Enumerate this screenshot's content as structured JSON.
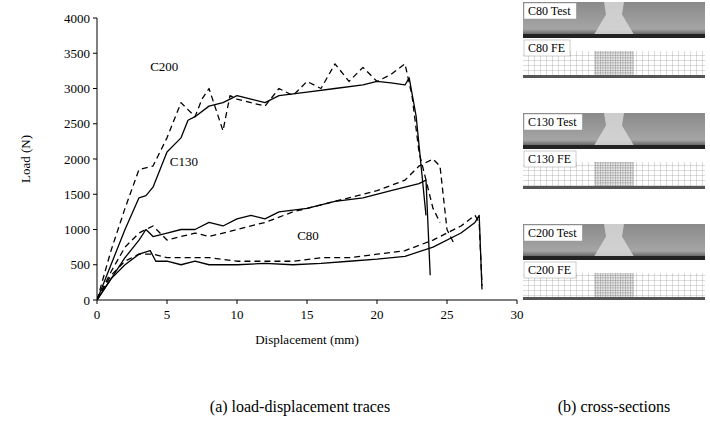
{
  "chart_data": {
    "type": "line",
    "x_label": "Displacement (mm)",
    "y_label": "Load (N)",
    "xlim": [
      0,
      30
    ],
    "xticks": [
      0,
      5,
      10,
      15,
      20,
      25,
      30
    ],
    "ylim": [
      0,
      4000
    ],
    "yticks": [
      0,
      500,
      1000,
      1500,
      2000,
      2500,
      3000,
      3500,
      4000
    ],
    "grid": false,
    "series": [
      {
        "color": "#000000",
        "line_style": "solid",
        "x": [
          0,
          1,
          2,
          3,
          3.5,
          4,
          5,
          6,
          6.5,
          7,
          8,
          9,
          10,
          11,
          12,
          13,
          15,
          17,
          19,
          20,
          21,
          22,
          22.3,
          22.8,
          23.5
        ],
        "values": [
          0,
          500,
          1000,
          1450,
          1480,
          1600,
          2100,
          2300,
          2550,
          2600,
          2750,
          2800,
          2900,
          2850,
          2800,
          2900,
          2950,
          3000,
          3050,
          3100,
          3080,
          3050,
          3150,
          2600,
          1200
        ]
      },
      {
        "color": "#000000",
        "line_style": "dashed",
        "x": [
          0,
          1,
          2,
          3,
          4,
          5,
          6,
          6.5,
          7,
          7.5,
          8,
          8.5,
          9,
          9.5,
          10,
          11,
          12,
          13,
          14,
          15,
          16,
          17,
          18,
          19,
          20,
          21,
          22,
          22.5,
          23,
          24,
          24.5
        ],
        "values": [
          0,
          700,
          1300,
          1850,
          1900,
          2300,
          2800,
          2700,
          2600,
          2850,
          3000,
          2700,
          2400,
          2900,
          2850,
          2800,
          2750,
          3000,
          2900,
          3100,
          3000,
          3350,
          3100,
          3300,
          3100,
          3200,
          3350,
          2900,
          2100,
          1300,
          1100
        ]
      },
      {
        "color": "#000000",
        "line_style": "solid",
        "x": [
          0,
          1,
          2,
          3,
          3.5,
          4,
          5,
          6,
          7,
          8,
          9,
          10,
          11,
          12,
          13,
          15,
          17,
          19,
          21,
          22,
          23,
          23.5,
          23.8
        ],
        "values": [
          0,
          300,
          600,
          850,
          1000,
          900,
          950,
          1000,
          1000,
          1100,
          1050,
          1150,
          1200,
          1150,
          1250,
          1300,
          1400,
          1450,
          1550,
          1600,
          1650,
          1700,
          350
        ]
      },
      {
        "color": "#000000",
        "line_style": "dashed",
        "x": [
          0,
          1,
          2,
          3,
          4,
          5,
          6,
          7,
          8,
          9,
          10,
          12,
          14,
          16,
          18,
          20,
          22,
          23,
          24,
          24.5,
          25,
          25.5
        ],
        "values": [
          0,
          400,
          750,
          950,
          1050,
          850,
          900,
          950,
          900,
          950,
          1000,
          1100,
          1250,
          1350,
          1450,
          1550,
          1700,
          1900,
          2000,
          1900,
          1000,
          800
        ]
      },
      {
        "color": "#000000",
        "line_style": "solid",
        "x": [
          0,
          1,
          2,
          3,
          3.8,
          4.2,
          5,
          6,
          7,
          8,
          10,
          12,
          14,
          16,
          18,
          20,
          22,
          24,
          26,
          27,
          27.3,
          27.5
        ],
        "values": [
          0,
          300,
          500,
          650,
          700,
          550,
          550,
          500,
          550,
          500,
          500,
          520,
          500,
          520,
          550,
          580,
          620,
          750,
          950,
          1100,
          1200,
          150
        ]
      },
      {
        "color": "#000000",
        "line_style": "dashed",
        "x": [
          0,
          1,
          2,
          3,
          4,
          5,
          6,
          7,
          8,
          10,
          12,
          14,
          16,
          18,
          20,
          22,
          24,
          26,
          27,
          27.3,
          27.5
        ],
        "values": [
          0,
          350,
          550,
          650,
          650,
          600,
          600,
          600,
          600,
          550,
          550,
          550,
          600,
          600,
          650,
          700,
          850,
          1050,
          1200,
          1100,
          200
        ]
      }
    ],
    "annotations": [
      {
        "text": "C200",
        "x": 3.8,
        "y": 3250
      },
      {
        "text": "C130",
        "x": 5.2,
        "y": 1900
      },
      {
        "text": "C80",
        "x": 14.3,
        "y": 850
      }
    ]
  },
  "figure": {
    "captions": [
      "(a) load-displacement traces",
      "(b) cross-sections"
    ],
    "cross_sections": [
      {
        "label": "C80 Test",
        "kind": "test"
      },
      {
        "label": "C80 FE",
        "kind": "fe"
      },
      {
        "label": "C130 Test",
        "kind": "test"
      },
      {
        "label": "C130 FE",
        "kind": "fe"
      },
      {
        "label": "C200 Test",
        "kind": "test"
      },
      {
        "label": "C200 FE",
        "kind": "fe"
      }
    ]
  }
}
